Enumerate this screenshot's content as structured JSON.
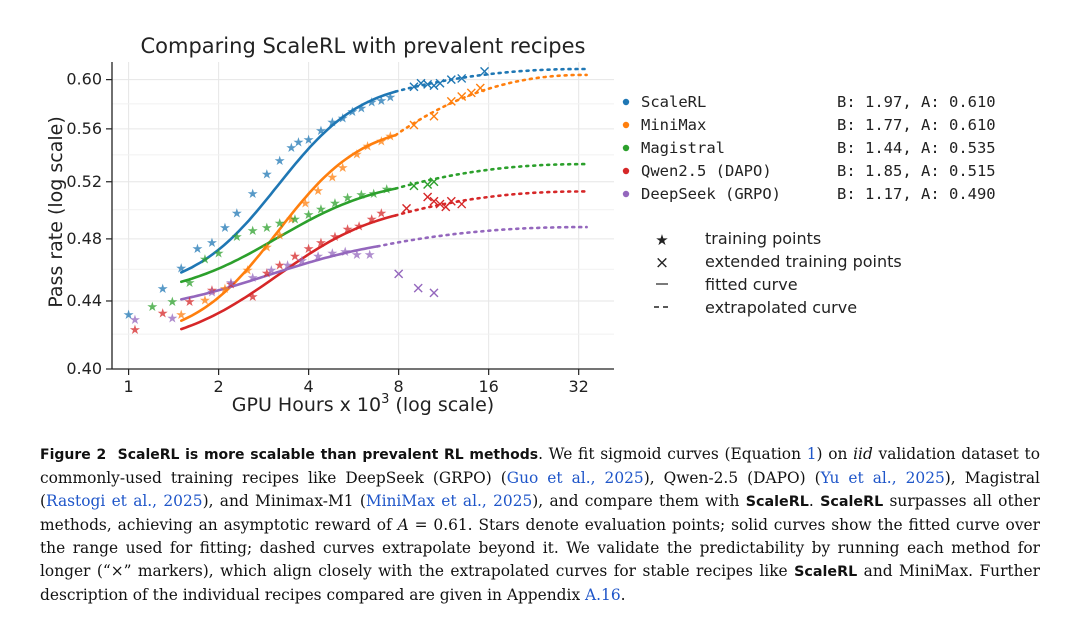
{
  "chart_data": {
    "type": "line",
    "title": "Comparing ScaleRL with prevalent recipes",
    "xlabel": "GPU Hours x 10^3 (log scale)",
    "xlabel_base": "GPU Hours x 10",
    "xlabel_exp": "3",
    "xlabel_suffix": " (log scale)",
    "ylabel": "Pass rate (log scale)",
    "xscale": "log",
    "yscale": "log",
    "xlim": [
      0.88,
      42
    ],
    "ylim": [
      0.4,
      0.615
    ],
    "xticks": [
      1,
      2,
      4,
      8,
      16,
      32
    ],
    "xtick_labels": [
      "1",
      "2",
      "4",
      "8",
      "16",
      "32"
    ],
    "yticks": [
      0.4,
      0.44,
      0.48,
      0.52,
      0.56,
      0.6
    ],
    "ytick_labels": [
      "0.40",
      "0.44",
      "0.48",
      "0.52",
      "0.56",
      "0.60"
    ],
    "grid": true,
    "legend_placement": "right",
    "series": [
      {
        "name": "ScaleRL",
        "params": "B: 1.97, A: 0.610",
        "color": "#1f77b4",
        "fit": {
          "x0": 1.5,
          "x1": 7.8,
          "y_start": 0.458,
          "y_end": 0.59
        },
        "extrap": {
          "x1": 34,
          "y_end": 0.609
        },
        "training_points": [
          [
            1.0,
            0.432
          ],
          [
            1.3,
            0.448
          ],
          [
            1.5,
            0.461
          ],
          [
            1.7,
            0.474
          ],
          [
            1.9,
            0.478
          ],
          [
            2.1,
            0.488
          ],
          [
            2.3,
            0.498
          ],
          [
            2.6,
            0.512
          ],
          [
            2.9,
            0.526
          ],
          [
            3.2,
            0.536
          ],
          [
            3.5,
            0.546
          ],
          [
            3.7,
            0.55
          ],
          [
            4.0,
            0.552
          ],
          [
            4.4,
            0.559
          ],
          [
            4.8,
            0.566
          ],
          [
            5.2,
            0.569
          ],
          [
            5.6,
            0.574
          ],
          [
            6.0,
            0.577
          ],
          [
            6.5,
            0.582
          ],
          [
            7.0,
            0.583
          ],
          [
            7.5,
            0.586
          ]
        ],
        "extended_points": [
          [
            9.0,
            0.594
          ],
          [
            9.5,
            0.597
          ],
          [
            10.0,
            0.596
          ],
          [
            10.5,
            0.595
          ],
          [
            11.0,
            0.597
          ],
          [
            12.0,
            0.6
          ],
          [
            13.0,
            0.601
          ],
          [
            15.5,
            0.607
          ]
        ]
      },
      {
        "name": "MiniMax",
        "params": "B: 1.77, A: 0.610",
        "color": "#ff7f0e",
        "fit": {
          "x0": 1.5,
          "x1": 7.8,
          "y_start": 0.428,
          "y_end": 0.555
        },
        "extrap": {
          "x1": 34,
          "y_end": 0.604
        },
        "training_points": [
          [
            1.5,
            0.432
          ],
          [
            1.8,
            0.441
          ],
          [
            2.1,
            0.448
          ],
          [
            2.5,
            0.46
          ],
          [
            2.9,
            0.475
          ],
          [
            3.2,
            0.483
          ],
          [
            3.5,
            0.494
          ],
          [
            3.9,
            0.505
          ],
          [
            4.3,
            0.514
          ],
          [
            4.8,
            0.524
          ],
          [
            5.2,
            0.531
          ],
          [
            5.8,
            0.541
          ],
          [
            6.3,
            0.547
          ],
          [
            7.0,
            0.551
          ],
          [
            7.5,
            0.555
          ]
        ],
        "extended_points": [
          [
            9.0,
            0.563
          ],
          [
            10.5,
            0.57
          ],
          [
            12.0,
            0.582
          ],
          [
            13.0,
            0.586
          ],
          [
            14.0,
            0.589
          ],
          [
            15.0,
            0.593
          ]
        ]
      },
      {
        "name": "Magistral",
        "params": "B: 1.44, A: 0.535",
        "color": "#2ca02c",
        "fit": {
          "x0": 1.5,
          "x1": 7.8,
          "y_start": 0.452,
          "y_end": 0.515
        },
        "extrap": {
          "x1": 34,
          "y_end": 0.533
        },
        "training_points": [
          [
            1.2,
            0.437
          ],
          [
            1.4,
            0.44
          ],
          [
            1.6,
            0.452
          ],
          [
            1.8,
            0.467
          ],
          [
            2.0,
            0.471
          ],
          [
            2.3,
            0.482
          ],
          [
            2.6,
            0.486
          ],
          [
            2.9,
            0.488
          ],
          [
            3.2,
            0.491
          ],
          [
            3.6,
            0.494
          ],
          [
            4.0,
            0.497
          ],
          [
            4.4,
            0.501
          ],
          [
            4.9,
            0.505
          ],
          [
            5.4,
            0.509
          ],
          [
            6.0,
            0.511
          ],
          [
            6.6,
            0.512
          ],
          [
            7.3,
            0.515
          ]
        ],
        "extended_points": [
          [
            9.0,
            0.517
          ],
          [
            10.0,
            0.518
          ],
          [
            10.5,
            0.52
          ]
        ]
      },
      {
        "name": "Qwen2.5 (DAPO)",
        "params": "B: 1.85, A: 0.515",
        "color": "#d62728",
        "fit": {
          "x0": 1.5,
          "x1": 7.8,
          "y_start": 0.423,
          "y_end": 0.496
        },
        "extrap": {
          "x1": 34,
          "y_end": 0.513
        },
        "training_points": [
          [
            1.05,
            0.423
          ],
          [
            1.3,
            0.433
          ],
          [
            1.6,
            0.44
          ],
          [
            1.9,
            0.447
          ],
          [
            2.2,
            0.451
          ],
          [
            2.6,
            0.443
          ],
          [
            2.9,
            0.458
          ],
          [
            3.2,
            0.463
          ],
          [
            3.6,
            0.469
          ],
          [
            4.0,
            0.474
          ],
          [
            4.4,
            0.478
          ],
          [
            4.9,
            0.482
          ],
          [
            5.4,
            0.487
          ],
          [
            5.9,
            0.489
          ],
          [
            6.5,
            0.494
          ],
          [
            7.0,
            0.498
          ]
        ],
        "extended_points": [
          [
            8.5,
            0.501
          ],
          [
            10.0,
            0.509
          ],
          [
            10.5,
            0.506
          ],
          [
            11.0,
            0.504
          ],
          [
            11.5,
            0.502
          ],
          [
            12.0,
            0.506
          ],
          [
            13.0,
            0.504
          ]
        ]
      },
      {
        "name": "DeepSeek (GRPO)",
        "params": "B: 1.17, A: 0.490",
        "color": "#9467bd",
        "fit": {
          "x0": 1.5,
          "x1": 6.8,
          "y_start": 0.441,
          "y_end": 0.475
        },
        "extrap": {
          "x1": 34,
          "y_end": 0.488
        },
        "training_points": [
          [
            1.05,
            0.429
          ],
          [
            1.4,
            0.43
          ],
          [
            1.9,
            0.446
          ],
          [
            2.2,
            0.452
          ],
          [
            2.6,
            0.455
          ],
          [
            3.0,
            0.46
          ],
          [
            3.4,
            0.463
          ],
          [
            3.8,
            0.466
          ],
          [
            4.3,
            0.469
          ],
          [
            4.8,
            0.471
          ],
          [
            5.3,
            0.472
          ],
          [
            5.8,
            0.47
          ],
          [
            6.4,
            0.47
          ]
        ],
        "extended_points": [
          [
            8.0,
            0.457
          ],
          [
            9.3,
            0.448
          ],
          [
            10.5,
            0.445
          ]
        ]
      }
    ],
    "marker_legend": [
      {
        "symbol": "★",
        "label": "training points"
      },
      {
        "symbol": "×",
        "label": "extended training points"
      },
      {
        "symbol": "—",
        "label": "fitted curve"
      },
      {
        "symbol": "--",
        "label": "extrapolated curve"
      }
    ]
  },
  "caption": {
    "label": "Figure 2",
    "title": "ScaleRL is more scalable than prevalent RL methods",
    "t1": ". We fit sigmoid curves (Equation ",
    "eq_ref": "1",
    "t2": ") on ",
    "iid": "iid",
    "t3": " validation dataset to commonly-used training recipes like DeepSeek (GRPO) (",
    "cite_guo": "Guo et al., 2025",
    "t4": "), Qwen-2.5 (DAPO) (",
    "cite_yu": "Yu et al., 2025",
    "t5": "), Magistral (",
    "cite_rastogi": "Rastogi et al., 2025",
    "t6": "), and Minimax-M1 (",
    "cite_minimax": "MiniMax et al., 2025",
    "t7": "), and compare them with ",
    "scalerl": "ScaleRL",
    "t8": ". ",
    "t9": " surpasses all other methods, achieving an asymptotic reward of ",
    "math_a": "A",
    "t10": " = 0.61. Stars denote evaluation points; solid curves show the fitted curve over the range used for fitting; dashed curves extrapolate beyond it. We validate the predictability by running each method for longer (“×” markers), which align closely with the extrapolated curves for stable recipes like ",
    "t11": " and MiniMax. Further description of the individual recipes compared are given in Appendix ",
    "appendix_ref": "A.16",
    "t12": "."
  }
}
